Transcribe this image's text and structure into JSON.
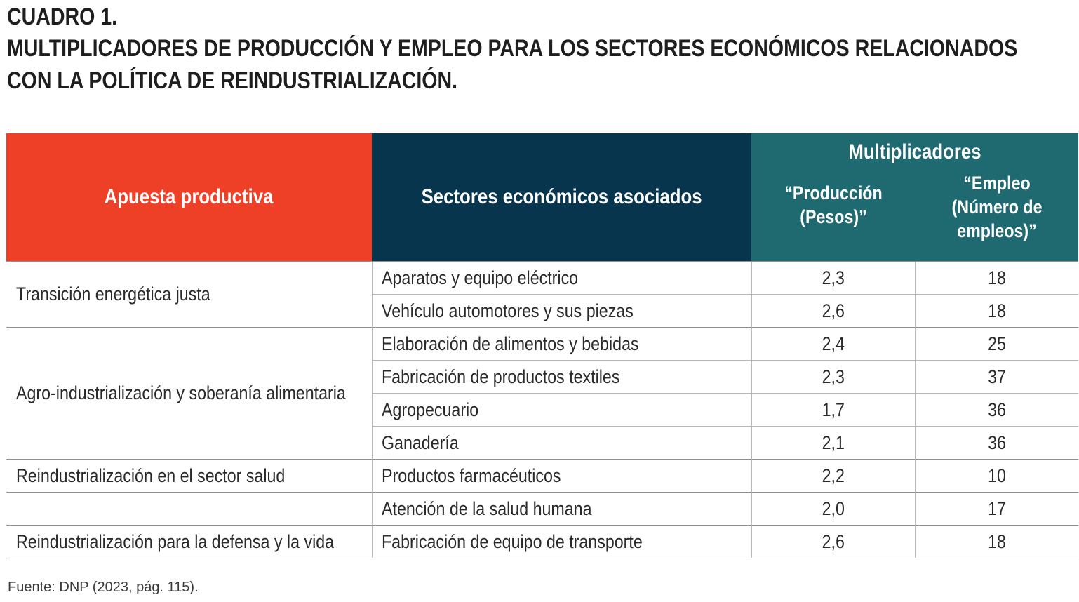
{
  "title": {
    "line1": "CUADRO 1.",
    "line2": "MULTIPLICADORES DE PRODUCCIÓN Y EMPLEO PARA LOS SECTORES ECONÓMICOS RELACIONADOS",
    "line3": "CON LA POLÍTICA DE REINDUSTRIALIZACIÓN."
  },
  "table": {
    "headers": {
      "apuesta": "Apuesta productiva",
      "sectores": "Sectores económicos asociados",
      "multiplicadores": "Multiplicadores",
      "produccion": "“Producción (Pesos)”",
      "empleo": "“Empleo (Número de empleos)”"
    },
    "rows": [
      {
        "apuesta": "Transición energética justa",
        "sector": "Aparatos y equipo eléctrico",
        "produccion": "2,3",
        "empleo": "18"
      },
      {
        "apuesta": "",
        "sector": "Vehículo automotores y sus piezas",
        "produccion": "2,6",
        "empleo": "18"
      },
      {
        "apuesta": "Agro-industrialización y soberanía alimentaria",
        "sector": "Elaboración de alimentos y bebidas",
        "produccion": "2,4",
        "empleo": "25"
      },
      {
        "apuesta": "",
        "sector": "Fabricación de productos textiles",
        "produccion": "2,3",
        "empleo": "37"
      },
      {
        "apuesta": "",
        "sector": "Agropecuario",
        "produccion": "1,7",
        "empleo": "36"
      },
      {
        "apuesta": "",
        "sector": "Ganadería",
        "produccion": "2,1",
        "empleo": "36"
      },
      {
        "apuesta": "Reindustrialización en el sector salud",
        "sector": "Productos farmacéuticos",
        "produccion": "2,2",
        "empleo": "10"
      },
      {
        "apuesta": "",
        "sector": "Atención de la salud humana",
        "produccion": "2,0",
        "empleo": "17"
      },
      {
        "apuesta": "Reindustrialización para la defensa y la vida",
        "sector": "Fabricación de equipo de transporte",
        "produccion": "2,6",
        "empleo": "18"
      }
    ]
  },
  "source": "Fuente: DNP (2023, pág. 115).",
  "colors": {
    "apuesta_header": "#ee4027",
    "sectores_header": "#06354d",
    "multiplicadores_header": "#1f6971"
  }
}
